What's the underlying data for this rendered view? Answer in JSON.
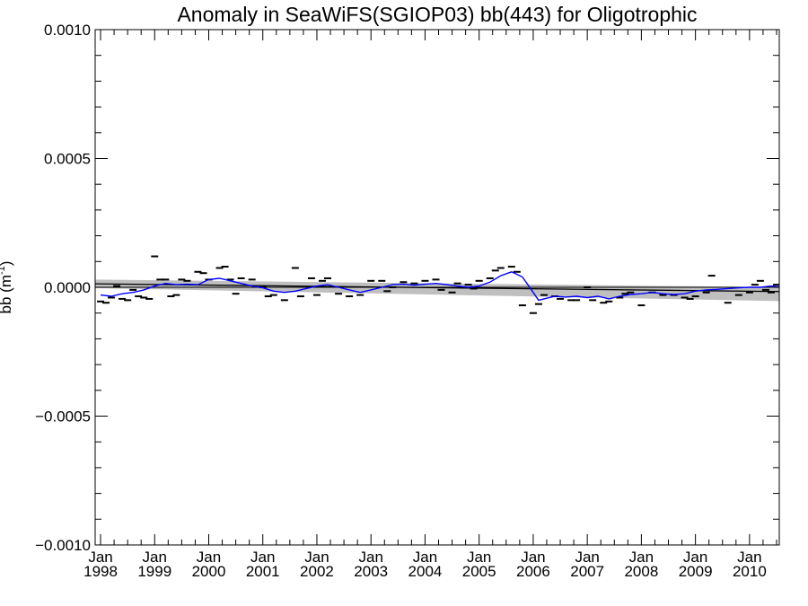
{
  "chart_data": {
    "type": "line",
    "title": "Anomaly in SeaWiFS(SGIOP03) bb(443) for Oligotrophic",
    "ylabel": "bb (m",
    "ylabel_sup": "-1",
    "ylabel_close": ")",
    "xlim": [
      1997.9,
      2010.55
    ],
    "ylim": [
      -0.001,
      0.001
    ],
    "grid": false,
    "y_ticks": [
      {
        "value": -0.001,
        "label": "−0.0010"
      },
      {
        "value": -0.0005,
        "label": "−0.0005"
      },
      {
        "value": 0.0,
        "label": "0.0000"
      },
      {
        "value": 0.0005,
        "label": "0.0005"
      },
      {
        "value": 0.001,
        "label": "0.0010"
      }
    ],
    "x_ticks": [
      {
        "value": 1998,
        "month": "Jan",
        "year": "1998"
      },
      {
        "value": 1999,
        "month": "Jan",
        "year": "1999"
      },
      {
        "value": 2000,
        "month": "Jan",
        "year": "2000"
      },
      {
        "value": 2001,
        "month": "Jan",
        "year": "2001"
      },
      {
        "value": 2002,
        "month": "Jan",
        "year": "2002"
      },
      {
        "value": 2003,
        "month": "Jan",
        "year": "2003"
      },
      {
        "value": 2004,
        "month": "Jan",
        "year": "2004"
      },
      {
        "value": 2005,
        "month": "Jan",
        "year": "2005"
      },
      {
        "value": 2006,
        "month": "Jan",
        "year": "2006"
      },
      {
        "value": 2007,
        "month": "Jan",
        "year": "2007"
      },
      {
        "value": 2008,
        "month": "Jan",
        "year": "2008"
      },
      {
        "value": 2009,
        "month": "Jan",
        "year": "2009"
      },
      {
        "value": 2010,
        "month": "Jan",
        "year": "2010"
      }
    ],
    "colors": {
      "smooth_line": "#0000ff",
      "trend_line": "#000000",
      "confidence_band": "#bfbfbf",
      "points": "#000000"
    },
    "trend": {
      "x": [
        1997.9,
        2010.55
      ],
      "y": [
        1.35e-05,
        -1.65e-05
      ]
    },
    "confidence_band": {
      "x": [
        1997.9,
        2010.55
      ],
      "upper": [
        3e-05,
        5e-07
      ],
      "lower": [
        -3.5e-06,
        -5.35e-05
      ]
    },
    "smooth": {
      "x": [
        1998.0,
        1998.2,
        1998.4,
        1998.6,
        1998.8,
        1999.0,
        1999.2,
        1999.4,
        1999.6,
        1999.8,
        2000.0,
        2000.2,
        2000.4,
        2000.6,
        2000.8,
        2001.0,
        2001.2,
        2001.4,
        2001.6,
        2001.8,
        2002.0,
        2002.2,
        2002.4,
        2002.6,
        2002.8,
        2003.0,
        2003.2,
        2003.4,
        2003.6,
        2003.8,
        2004.0,
        2004.2,
        2004.4,
        2004.6,
        2004.8,
        2005.0,
        2005.2,
        2005.4,
        2005.6,
        2005.8,
        2006.0,
        2006.1,
        2006.2,
        2006.4,
        2006.6,
        2006.8,
        2007.0,
        2007.2,
        2007.4,
        2007.6,
        2007.8,
        2008.0,
        2008.2,
        2008.4,
        2008.6,
        2008.8,
        2009.0,
        2009.2,
        2009.4,
        2009.6,
        2009.8,
        2010.0,
        2010.2,
        2010.4,
        2010.55
      ],
      "y": [
        -3e-05,
        -3.5e-05,
        -2.5e-05,
        -2e-05,
        -1e-05,
        5e-06,
        1.5e-05,
        1e-05,
        1.2e-05,
        1e-05,
        3e-05,
        3.5e-05,
        2.5e-05,
        1.5e-05,
        5e-06,
        -2e-06,
        -1.5e-05,
        -2e-05,
        -1.5e-05,
        -5e-06,
        5e-06,
        1e-05,
        0.0,
        -1e-05,
        -2e-05,
        -1e-05,
        0.0,
        1e-05,
        1.2e-05,
        8e-06,
        1.2e-05,
        1.5e-05,
        1e-05,
        5e-06,
        0.0,
        5e-06,
        2e-05,
        4.5e-05,
        6e-05,
        4e-05,
        -2e-05,
        -5e-05,
        -4.5e-05,
        -3.5e-05,
        -3.8e-05,
        -3.5e-05,
        -4e-05,
        -3.5e-05,
        -4.5e-05,
        -3.5e-05,
        -2.8e-05,
        -2.5e-05,
        -2e-05,
        -2.5e-05,
        -2.8e-05,
        -2.5e-05,
        -1.5e-05,
        -1e-05,
        -8e-06,
        -5e-06,
        -2e-06,
        0.0,
        0.0,
        5e-06,
        2e-06
      ]
    },
    "points": {
      "x": [
        1998.0,
        1998.1,
        1998.2,
        1998.3,
        1998.4,
        1998.5,
        1998.6,
        1998.7,
        1998.8,
        1998.9,
        1999.0,
        1999.1,
        1999.2,
        1999.3,
        1999.4,
        1999.5,
        1999.6,
        1999.8,
        1999.9,
        2000.0,
        2000.2,
        2000.3,
        2000.4,
        2000.5,
        2000.6,
        2000.8,
        2001.0,
        2001.1,
        2001.2,
        2001.4,
        2001.6,
        2001.7,
        2001.9,
        2002.0,
        2002.1,
        2002.2,
        2002.4,
        2002.6,
        2002.8,
        2003.0,
        2003.2,
        2003.3,
        2003.4,
        2003.6,
        2003.8,
        2004.0,
        2004.2,
        2004.3,
        2004.5,
        2004.6,
        2004.8,
        2004.9,
        2005.0,
        2005.2,
        2005.3,
        2005.4,
        2005.6,
        2005.7,
        2005.8,
        2006.0,
        2006.1,
        2006.2,
        2006.4,
        2006.5,
        2006.7,
        2006.8,
        2007.0,
        2007.1,
        2007.3,
        2007.4,
        2007.6,
        2007.7,
        2007.8,
        2008.0,
        2008.2,
        2008.4,
        2008.6,
        2008.8,
        2008.9,
        2009.0,
        2009.2,
        2009.3,
        2009.6,
        2009.8,
        2010.0,
        2010.1,
        2010.2,
        2010.3,
        2010.4,
        2010.5
      ],
      "y": [
        -5.5e-05,
        -6e-05,
        -4e-05,
        5e-06,
        -4.5e-05,
        -5e-05,
        -1e-05,
        -3.5e-05,
        -4e-05,
        -4.5e-05,
        0.00012,
        3e-05,
        3e-05,
        -3.5e-05,
        -3e-05,
        3e-05,
        2.5e-05,
        6e-05,
        5.5e-05,
        3e-05,
        7.5e-05,
        8e-05,
        3e-05,
        -2.5e-05,
        3.5e-05,
        3e-05,
        0.0,
        -3.5e-05,
        -3e-05,
        -5e-05,
        7.5e-05,
        -3.5e-05,
        3.5e-05,
        -3e-05,
        2.5e-05,
        3.5e-05,
        -2.5e-05,
        -3.5e-05,
        -3e-05,
        2.5e-05,
        2.5e-05,
        -1.5e-05,
        0.0,
        2e-05,
        1.5e-05,
        2.5e-05,
        3e-05,
        -1e-05,
        -2e-05,
        1.5e-05,
        1e-05,
        -5e-06,
        2.5e-05,
        3.5e-05,
        6.5e-05,
        7.5e-05,
        8e-05,
        6e-05,
        -7e-05,
        -0.0001,
        -6.5e-05,
        -3e-05,
        -3.5e-05,
        -4.5e-05,
        -5e-05,
        -5e-05,
        0.0,
        -5e-05,
        -6e-05,
        -5.5e-05,
        -4e-05,
        -2.5e-05,
        -2e-05,
        -7e-05,
        -2e-05,
        -3e-05,
        -3e-05,
        -4e-05,
        -4.5e-05,
        -3.5e-05,
        -2e-05,
        4.5e-05,
        -6e-05,
        -3e-05,
        -2e-05,
        1e-05,
        2.5e-05,
        -1e-05,
        -2e-05,
        1e-05
      ]
    }
  }
}
